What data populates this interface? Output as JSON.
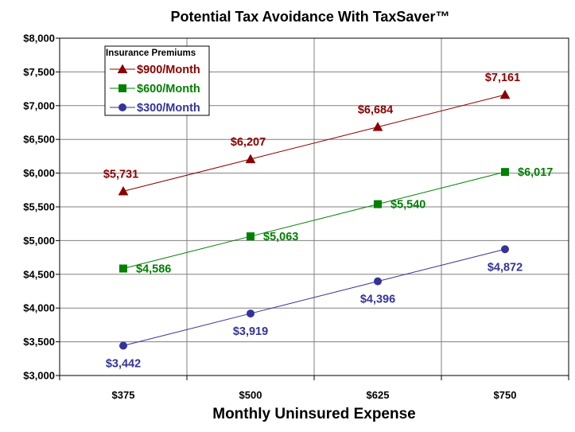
{
  "chart_data": {
    "type": "line",
    "title": "Potential Tax Avoidance With TaxSaver™",
    "xlabel": "Monthly Uninsured Expense",
    "ylabel": "",
    "categories": [
      "$375",
      "$500",
      "$625",
      "$750"
    ],
    "x": [
      375,
      500,
      625,
      750
    ],
    "xlim": [
      312.5,
      812.5
    ],
    "ylim": [
      3000,
      8000
    ],
    "yticks": [
      3000,
      3500,
      4000,
      4500,
      5000,
      5500,
      6000,
      6500,
      7000,
      7500,
      8000
    ],
    "ytick_labels": [
      "$3,000",
      "$3,500",
      "$4,000",
      "$4,500",
      "$5,000",
      "$5,500",
      "$6,000",
      "$6,500",
      "$7,000",
      "$7,500",
      "$8,000"
    ],
    "grid": true,
    "legend": {
      "title": "Insurance Premiums",
      "placement": "top-left"
    },
    "series": [
      {
        "name": "$900/Month",
        "color": "#8B0000",
        "marker": "triangle",
        "values": [
          5731,
          6207,
          6684,
          7161
        ],
        "labels": [
          "$5,731",
          "$6,207",
          "$6,684",
          "$7,161"
        ]
      },
      {
        "name": "$600/Month",
        "color": "#008000",
        "marker": "square",
        "values": [
          4586,
          5063,
          5540,
          6017
        ],
        "labels": [
          "$4,586",
          "$5,063",
          "$5,540",
          "$6,017"
        ]
      },
      {
        "name": "$300/Month",
        "color": "#333399",
        "marker": "circle",
        "values": [
          3442,
          3919,
          4396,
          4872
        ],
        "labels": [
          "$3,442",
          "$3,919",
          "$4,396",
          "$4,872"
        ]
      }
    ]
  }
}
